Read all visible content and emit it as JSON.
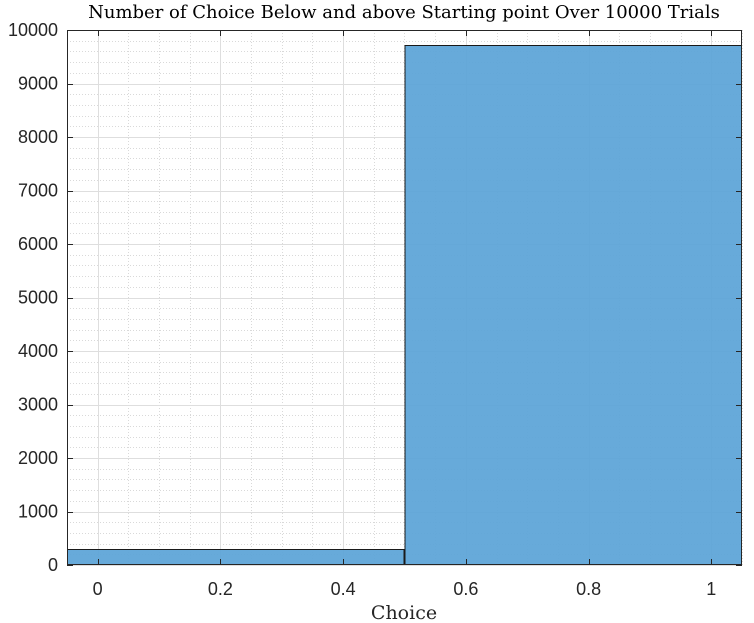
{
  "chart_data": {
    "type": "bar",
    "title": "Number of Choice Below and above Starting point Over 10000 Trials",
    "xlabel": "Choice",
    "ylabel": "",
    "xlim": [
      -0.05,
      1.05
    ],
    "ylim": [
      0,
      10000
    ],
    "bins": [
      {
        "start": -0.5,
        "end": 0.5,
        "value": 290
      },
      {
        "start": 0.5,
        "end": 1.5,
        "value": 9710
      }
    ],
    "x_ticks": [
      "0",
      "0.2",
      "0.4",
      "0.6",
      "0.8",
      "1"
    ],
    "y_ticks": [
      "0",
      "1000",
      "2000",
      "3000",
      "4000",
      "5000",
      "6000",
      "7000",
      "8000",
      "9000",
      "10000"
    ],
    "grid": true,
    "minor_grid": true,
    "bar_color": "#5ba4d7",
    "edge_color": "#1a1a1a",
    "legend": null
  }
}
